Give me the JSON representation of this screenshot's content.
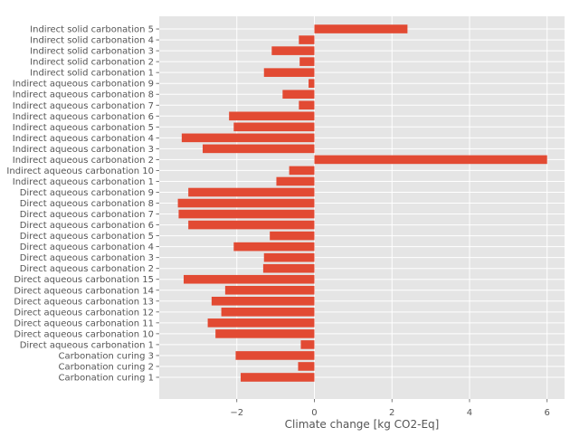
{
  "chart_data": {
    "type": "bar",
    "orientation": "horizontal",
    "xlabel": "Climate change [kg CO2-Eq]",
    "ylabel": "",
    "title": "",
    "xlim": [
      -4.0,
      6.45
    ],
    "xticks": [
      -2,
      0,
      2,
      4,
      6
    ],
    "xtick_labels": [
      "−2",
      "0",
      "2",
      "4",
      "6"
    ],
    "grid": true,
    "colors": {
      "bar": "#E24A33",
      "background": "#E5E5E5",
      "grid": "#FFFFFF",
      "text": "#555555"
    },
    "categories": [
      "Carbonation curing 1",
      "Carbonation curing 2",
      "Carbonation curing 3",
      "Direct aqueous carbonation 1",
      "Direct aqueous carbonation 10",
      "Direct aqueous carbonation 11",
      "Direct aqueous carbonation 12",
      "Direct aqueous carbonation 13",
      "Direct aqueous carbonation 14",
      "Direct aqueous carbonation 15",
      "Direct aqueous carbonation 2",
      "Direct aqueous carbonation 3",
      "Direct aqueous carbonation 4",
      "Direct aqueous carbonation 5",
      "Direct aqueous carbonation 6",
      "Direct aqueous carbonation 7",
      "Direct aqueous carbonation 8",
      "Direct aqueous carbonation 9",
      "Indirect aqueous carbonation 1",
      "Indirect aqueous carbonation 10",
      "Indirect aqueous carbonation 2",
      "Indirect aqueous carbonation 3",
      "Indirect aqueous carbonation 4",
      "Indirect aqueous carbonation 5",
      "Indirect aqueous carbonation 6",
      "Indirect aqueous carbonation 7",
      "Indirect aqueous carbonation 8",
      "Indirect aqueous carbonation 9",
      "Indirect solid carbonation 1",
      "Indirect solid carbonation 2",
      "Indirect solid carbonation 3",
      "Indirect solid carbonation 4",
      "Indirect solid carbonation 5"
    ],
    "values": [
      -1.9,
      -0.42,
      -2.03,
      -0.35,
      -2.55,
      -2.75,
      -2.4,
      -2.65,
      -2.3,
      -3.37,
      -1.32,
      -1.3,
      -2.08,
      -1.15,
      -3.25,
      -3.5,
      -3.52,
      -3.25,
      -0.98,
      -0.65,
      6.0,
      -2.88,
      -3.42,
      -2.08,
      -2.2,
      -0.4,
      -0.82,
      -0.15,
      -1.3,
      -0.38,
      -1.1,
      -0.4,
      2.4
    ]
  }
}
